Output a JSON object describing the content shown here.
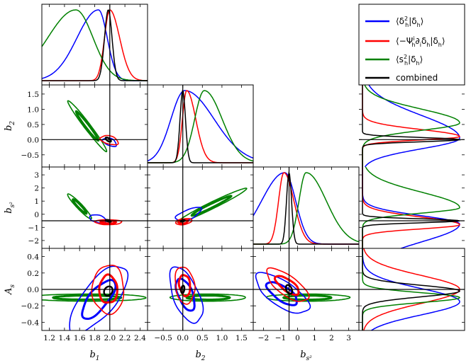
{
  "chart_data": {
    "type": "corner",
    "title": "",
    "parameters": [
      {
        "key": "b1",
        "symbol": "b",
        "sub": "1",
        "range": [
          1.1,
          2.5
        ],
        "ticks": [
          1.2,
          1.4,
          1.6,
          1.8,
          2.0,
          2.2,
          2.4
        ],
        "tick_labels": [
          "1.2",
          "1.4",
          "1.6",
          "1.8",
          "2.0",
          "2.2",
          "2.4"
        ],
        "fiducial": 2.0
      },
      {
        "key": "b2",
        "symbol": "b",
        "sub": "2",
        "range": [
          -0.9,
          1.8
        ],
        "ticks": [
          -0.5,
          0.0,
          0.5,
          1.0,
          1.5
        ],
        "tick_labels": [
          "−0.5",
          "0.0",
          "0.5",
          "1.0",
          "1.5"
        ],
        "fiducial": 0.0
      },
      {
        "key": "bs2",
        "symbol": "b",
        "sub": "s²",
        "range": [
          -2.6,
          3.6
        ],
        "ticks": [
          -2,
          -1,
          0,
          1,
          2,
          3
        ],
        "tick_labels": [
          "−2",
          "−1",
          "0",
          "1",
          "2",
          "3"
        ],
        "fiducial": -0.5
      },
      {
        "key": "As",
        "symbol": "A",
        "sub": "s",
        "range": [
          -0.5,
          0.5
        ],
        "ticks": [
          -0.4,
          -0.2,
          0.0,
          0.2,
          0.4
        ],
        "tick_labels": [
          "−0.4",
          "−0.2",
          "0.0",
          "0.2",
          "0.4"
        ],
        "fiducial": 0.0
      }
    ],
    "series": [
      {
        "name": "⟨δ²h|δh⟩",
        "label_parts": [
          "⟨δ",
          "2",
          "h",
          "|δ",
          "h",
          "⟩"
        ],
        "color": "#0000ff",
        "mean": {
          "b1": 1.85,
          "b2": 0.05,
          "bs2": -0.75,
          "As": -0.15
        },
        "sigma": {
          "b1": 0.2,
          "b2": 0.55,
          "bs2": 1.0,
          "As": 0.16
        },
        "marginal_skew": {
          "b1": -0.7,
          "b2": 0.6,
          "bs2": -0.6,
          "As": 0.0
        }
      },
      {
        "name": "⟨−Ψih∂iδh|δh⟩",
        "label_parts": [
          "⟨−Ψ",
          "i",
          "h",
          "∂",
          "i",
          "δ",
          "h",
          "|δ",
          "h",
          "⟩"
        ],
        "color": "#ff0000",
        "mean": {
          "b1": 2.0,
          "b2": 0.1,
          "bs2": -0.8,
          "As": 0.0
        },
        "sigma": {
          "b1": 0.1,
          "b2": 0.17,
          "bs2": 0.45,
          "As": 0.17
        },
        "marginal_skew": {
          "b1": 0.5,
          "b2": 0.6,
          "bs2": 0.5,
          "As": 0.0
        }
      },
      {
        "name": "⟨s²h|δh⟩",
        "label_parts": [
          "⟨s",
          "2",
          "h",
          "|δ",
          "h",
          "⟩"
        ],
        "color": "#008000",
        "mean": {
          "b1": 1.55,
          "b2": 0.55,
          "bs2": 0.5,
          "As": -0.1
        },
        "sigma": {
          "b1": 0.3,
          "b2": 0.35,
          "bs2": 0.8,
          "As": 0.06
        },
        "marginal_skew": {
          "b1": -0.4,
          "b2": 0.5,
          "bs2": 0.8,
          "As": 0.0
        }
      },
      {
        "name": "combined",
        "label_parts": [
          "combined"
        ],
        "color": "#000000",
        "mean": {
          "b1": 1.98,
          "b2": 0.0,
          "bs2": -0.5,
          "As": -0.02
        },
        "sigma": {
          "b1": 0.05,
          "b2": 0.07,
          "bs2": 0.15,
          "As": 0.07
        },
        "marginal_skew": {
          "b1": 0.0,
          "b2": 0.0,
          "bs2": 0.0,
          "As": 0.0
        }
      }
    ],
    "contours": [
      {
        "pair": [
          "b1",
          "b2"
        ],
        "series": "⟨δ²h|δh⟩",
        "center": [
          1.98,
          -0.03
        ],
        "slope": -2.6,
        "sigma_along": [
          0.07,
          0.17
        ],
        "sigma_perp": 0.06,
        "lw": [
          1.6
        ]
      },
      {
        "pair": [
          "b1",
          "b2"
        ],
        "series": "⟨−Ψih∂iδh|δh⟩",
        "center": [
          1.97,
          0.03
        ],
        "slope": -1.9,
        "sigma_along": [
          0.08,
          0.18
        ],
        "sigma_perp": 0.08,
        "lw": [
          1.6
        ]
      },
      {
        "pair": [
          "b1",
          "b2"
        ],
        "series": "⟨s²h|δh⟩",
        "center": [
          1.7,
          0.45
        ],
        "slope": -3.3,
        "sigma_along": [
          0.5,
          0.5
        ],
        "sigma_perp": 0.028,
        "lw": [
          3.0,
          1.6
        ]
      },
      {
        "pair": [
          "b1",
          "b2"
        ],
        "series": "combined",
        "center": [
          1.98,
          0.0
        ],
        "slope": -2.6,
        "sigma_along": [
          0.06,
          0.06
        ],
        "sigma_perp": 0.02,
        "lw": [
          2.4
        ]
      },
      {
        "pair": [
          "b1",
          "bs2"
        ],
        "series": "⟨δ²h|δh⟩",
        "center": [
          1.85,
          -0.4
        ],
        "slope": -6.5,
        "sigma_along": [
          0.3,
          0.22
        ],
        "sigma_perp": 0.08,
        "lw": [
          1.6
        ]
      },
      {
        "pair": [
          "b1",
          "bs2"
        ],
        "series": "⟨−Ψih∂iδh|δh⟩",
        "center": [
          1.98,
          -0.6
        ],
        "slope": -3.0,
        "sigma_along": [
          0.11,
          0.11
        ],
        "sigma_perp": 0.1,
        "lw": [
          3.0,
          1.6
        ]
      },
      {
        "pair": [
          "b1",
          "bs2"
        ],
        "series": "⟨s²h|δh⟩",
        "center": [
          1.6,
          0.6
        ],
        "slope": -6.3,
        "sigma_along": [
          0.55,
          0.55
        ],
        "sigma_perp": 0.028,
        "lw": [
          3.0,
          1.6
        ]
      },
      {
        "pair": [
          "b1",
          "bs2"
        ],
        "series": "combined",
        "center": [
          1.98,
          -0.5
        ],
        "slope": -3.0,
        "sigma_along": [
          0.06,
          0.06
        ],
        "sigma_perp": 0.02,
        "lw": [
          2.4
        ]
      },
      {
        "pair": [
          "b2",
          "bs2"
        ],
        "series": "⟨δ²h|δh⟩",
        "center": [
          0.1,
          -0.1
        ],
        "slope": 2.0,
        "sigma_along": [
          0.35,
          0.55
        ],
        "sigma_perp": 0.18,
        "lw": [
          1.6
        ]
      },
      {
        "pair": [
          "b2",
          "bs2"
        ],
        "series": "⟨−Ψih∂iδh|δh⟩",
        "center": [
          0.0,
          -0.6
        ],
        "slope": 1.5,
        "sigma_along": [
          0.12,
          0.18
        ],
        "sigma_perp": 0.1,
        "lw": [
          3.0,
          1.6
        ]
      },
      {
        "pair": [
          "b2",
          "bs2"
        ],
        "series": "⟨s²h|δh⟩",
        "center": [
          0.7,
          0.6
        ],
        "slope": 1.5,
        "sigma_along": [
          0.85,
          0.95
        ],
        "sigma_perp": 0.09,
        "lw": [
          3.0,
          1.6
        ]
      },
      {
        "pair": [
          "b2",
          "bs2"
        ],
        "series": "combined",
        "center": [
          0.0,
          -0.5
        ],
        "slope": 1.5,
        "sigma_along": [
          0.05,
          0.05
        ],
        "sigma_perp": 0.03,
        "lw": [
          2.4
        ]
      },
      {
        "pair": [
          "b1",
          "As"
        ],
        "series": "⟨δ²h|δh⟩",
        "center": [
          1.85,
          -0.12
        ],
        "slope": 1.1,
        "sigma_along": [
          0.3,
          0.3
        ],
        "sigma_perp": 0.12,
        "lw": [
          3.0,
          1.6
        ]
      },
      {
        "pair": [
          "b1",
          "As"
        ],
        "series": "⟨−Ψih∂iδh|δh⟩",
        "center": [
          1.98,
          0.0
        ],
        "slope": 0.0,
        "sigma_along": [
          0.12,
          0.12
        ],
        "sigma_perp": 0.17,
        "lw": [
          3.0,
          1.6
        ]
      },
      {
        "pair": [
          "b1",
          "As"
        ],
        "series": "⟨s²h|δh⟩",
        "center": [
          1.7,
          -0.1
        ],
        "slope": 0.0,
        "sigma_along": [
          0.45,
          0.45
        ],
        "sigma_perp": 0.025,
        "lw": [
          3.0,
          1.6
        ]
      },
      {
        "pair": [
          "b1",
          "As"
        ],
        "series": "combined",
        "center": [
          1.98,
          -0.02
        ],
        "slope": 1.0,
        "sigma_along": [
          0.05,
          0.05
        ],
        "sigma_perp": 0.04,
        "lw": [
          2.4
        ]
      },
      {
        "pair": [
          "b2",
          "As"
        ],
        "series": "⟨δ²h|δh⟩",
        "center": [
          0.05,
          -0.05
        ],
        "slope": -0.7,
        "sigma_along": [
          0.25,
          0.3
        ],
        "sigma_perp": 0.14,
        "lw": [
          3.0,
          1.6
        ]
      },
      {
        "pair": [
          "b2",
          "As"
        ],
        "series": "⟨−Ψih∂iδh|δh⟩",
        "center": [
          0.05,
          0.05
        ],
        "slope": -0.6,
        "sigma_along": [
          0.15,
          0.15
        ],
        "sigma_perp": 0.12,
        "lw": [
          3.0,
          1.6
        ]
      },
      {
        "pair": [
          "b2",
          "As"
        ],
        "series": "⟨s²h|δh⟩",
        "center": [
          0.65,
          -0.1
        ],
        "slope": 0.0,
        "sigma_along": [
          0.55,
          0.55
        ],
        "sigma_perp": 0.025,
        "lw": [
          3.0,
          1.6
        ]
      },
      {
        "pair": [
          "b2",
          "As"
        ],
        "series": "combined",
        "center": [
          0.0,
          0.0
        ],
        "slope": -0.8,
        "sigma_along": [
          0.03,
          0.03
        ],
        "sigma_perp": 0.04,
        "lw": [
          2.4
        ]
      },
      {
        "pair": [
          "bs2",
          "As"
        ],
        "series": "⟨δ²h|δh⟩",
        "center": [
          -0.9,
          -0.05
        ],
        "slope": -0.11,
        "sigma_along": [
          0.9,
          0.9
        ],
        "sigma_perp": 0.1,
        "lw": [
          3.0,
          1.6
        ]
      },
      {
        "pair": [
          "bs2",
          "As"
        ],
        "series": "⟨−Ψih∂iδh|δh⟩",
        "center": [
          -0.6,
          0.05
        ],
        "slope": -0.12,
        "sigma_along": [
          0.7,
          0.7
        ],
        "sigma_perp": 0.08,
        "lw": [
          3.0,
          1.6
        ]
      },
      {
        "pair": [
          "bs2",
          "As"
        ],
        "series": "⟨s²h|δh⟩",
        "center": [
          0.6,
          -0.1
        ],
        "slope": 0.0,
        "sigma_along": [
          1.4,
          1.4
        ],
        "sigma_perp": 0.025,
        "lw": [
          3.0,
          1.6
        ]
      },
      {
        "pair": [
          "bs2",
          "As"
        ],
        "series": "combined",
        "center": [
          -0.5,
          0.0
        ],
        "slope": -0.12,
        "sigma_along": [
          0.15,
          0.15
        ],
        "sigma_perp": 0.04,
        "lw": [
          2.4
        ]
      }
    ],
    "legend": {
      "position": "top-right"
    }
  }
}
